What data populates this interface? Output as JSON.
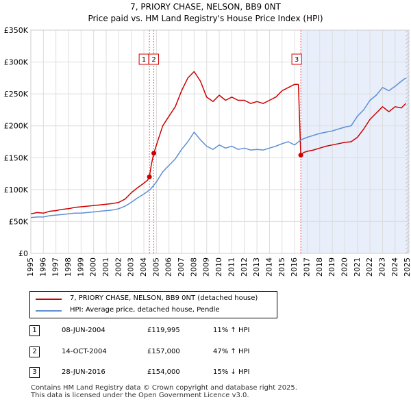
{
  "chart_data": {
    "type": "line",
    "title": "7, PRIORY CHASE, NELSON, BB9 0NT",
    "subtitle": "Price paid vs. HM Land Registry's House Price Index (HPI)",
    "xlabel": "",
    "ylabel": "",
    "xlim": [
      1995.0,
      2025.1
    ],
    "ylim": [
      0,
      350000
    ],
    "y_ticks": [
      0,
      50000,
      100000,
      150000,
      200000,
      250000,
      300000,
      350000
    ],
    "y_tick_labels": [
      "£0",
      "£50K",
      "£100K",
      "£150K",
      "£200K",
      "£250K",
      "£300K",
      "£350K"
    ],
    "x_ticks": [
      1995,
      1996,
      1997,
      1998,
      1999,
      2000,
      2001,
      2002,
      2003,
      2004,
      2005,
      2006,
      2007,
      2008,
      2009,
      2010,
      2011,
      2012,
      2013,
      2014,
      2015,
      2016,
      2017,
      2018,
      2019,
      2020,
      2021,
      2022,
      2023,
      2024,
      2025
    ],
    "x_tick_labels": [
      "1995",
      "1996",
      "1997",
      "1998",
      "1999",
      "2000",
      "2001",
      "2002",
      "2003",
      "2004",
      "2005",
      "2006",
      "2007",
      "2008",
      "2009",
      "2010",
      "2011",
      "2012",
      "2013",
      "2014",
      "2015",
      "2016",
      "2017",
      "2018",
      "2019",
      "2020",
      "2021",
      "2022",
      "2023",
      "2024",
      "2025"
    ],
    "grid": true,
    "shaded_region": {
      "from": 2016.49,
      "to": 2025.1,
      "color": "#e8eefa"
    },
    "hatch_region": {
      "from": 2024.85,
      "to": 2025.1
    },
    "colors": {
      "property": "#cc0000",
      "hpi": "#5b8fd6",
      "marker": "#cc0000",
      "vline": "#e06060"
    },
    "series": [
      {
        "name": "7, PRIORY CHASE, NELSON, BB9 0NT (detached house)",
        "color": "#cc0000",
        "x": [
          1995.0,
          1995.5,
          1996.0,
          1996.5,
          1997.0,
          1997.5,
          1998.0,
          1998.5,
          1999.0,
          1999.5,
          2000.0,
          2000.5,
          2001.0,
          2001.5,
          2002.0,
          2002.5,
          2003.0,
          2003.5,
          2004.0,
          2004.3,
          2004.44,
          2004.6,
          2004.79,
          2005.0,
          2005.5,
          2006.0,
          2006.5,
          2007.0,
          2007.5,
          2008.0,
          2008.5,
          2009.0,
          2009.5,
          2010.0,
          2010.5,
          2011.0,
          2011.5,
          2012.0,
          2012.5,
          2013.0,
          2013.5,
          2014.0,
          2014.5,
          2015.0,
          2015.5,
          2016.0,
          2016.3,
          2016.49,
          2016.7,
          2017.0,
          2017.5,
          2018.0,
          2018.5,
          2019.0,
          2019.5,
          2020.0,
          2020.5,
          2021.0,
          2021.5,
          2022.0,
          2022.5,
          2023.0,
          2023.5,
          2024.0,
          2024.5,
          2024.85
        ],
        "values": [
          62000,
          64000,
          63000,
          66000,
          67000,
          69000,
          70000,
          72000,
          73000,
          74000,
          75000,
          76000,
          77000,
          78000,
          80000,
          85000,
          95000,
          103000,
          110000,
          115000,
          119995,
          140000,
          157000,
          170000,
          200000,
          215000,
          230000,
          255000,
          275000,
          285000,
          270000,
          245000,
          238000,
          248000,
          240000,
          245000,
          240000,
          240000,
          235000,
          238000,
          235000,
          240000,
          245000,
          255000,
          260000,
          265000,
          265000,
          154000,
          158000,
          160000,
          162000,
          165000,
          168000,
          170000,
          172000,
          174000,
          175000,
          182000,
          195000,
          210000,
          220000,
          230000,
          222000,
          230000,
          228000,
          235000
        ]
      },
      {
        "name": "HPI: Average price, detached house, Pendle",
        "color": "#5b8fd6",
        "x": [
          1995.0,
          1995.5,
          1996.0,
          1996.5,
          1997.0,
          1997.5,
          1998.0,
          1998.5,
          1999.0,
          1999.5,
          2000.0,
          2000.5,
          2001.0,
          2001.5,
          2002.0,
          2002.5,
          2003.0,
          2003.5,
          2004.0,
          2004.5,
          2005.0,
          2005.5,
          2006.0,
          2006.5,
          2007.0,
          2007.5,
          2008.0,
          2008.5,
          2009.0,
          2009.5,
          2010.0,
          2010.5,
          2011.0,
          2011.5,
          2012.0,
          2012.5,
          2013.0,
          2013.5,
          2014.0,
          2014.5,
          2015.0,
          2015.5,
          2016.0,
          2016.5,
          2017.0,
          2017.5,
          2018.0,
          2018.5,
          2019.0,
          2019.5,
          2020.0,
          2020.5,
          2021.0,
          2021.5,
          2022.0,
          2022.5,
          2023.0,
          2023.5,
          2024.0,
          2024.5,
          2024.85
        ],
        "values": [
          56000,
          57000,
          57000,
          59000,
          60000,
          61000,
          62000,
          63000,
          63000,
          64000,
          65000,
          66000,
          67000,
          68000,
          70000,
          74000,
          80000,
          87000,
          93000,
          100000,
          112000,
          128000,
          138000,
          148000,
          163000,
          175000,
          190000,
          178000,
          168000,
          163000,
          170000,
          165000,
          168000,
          163000,
          165000,
          162000,
          163000,
          162000,
          165000,
          168000,
          172000,
          175000,
          170000,
          178000,
          182000,
          185000,
          188000,
          190000,
          192000,
          195000,
          198000,
          200000,
          215000,
          225000,
          240000,
          248000,
          260000,
          255000,
          262000,
          270000,
          275000
        ]
      }
    ],
    "sales": [
      {
        "label": "1",
        "x": 2004.44,
        "value": 119995
      },
      {
        "label": "2",
        "x": 2004.79,
        "value": 157000
      },
      {
        "label": "3",
        "x": 2016.49,
        "value": 154000
      }
    ]
  },
  "legend": {
    "property_label": "7, PRIORY CHASE, NELSON, BB9 0NT (detached house)",
    "hpi_label": "HPI: Average price, detached house, Pendle"
  },
  "transactions": [
    {
      "num": "1",
      "date": "08-JUN-2004",
      "price": "£119,995",
      "hpi": "11% ↑ HPI"
    },
    {
      "num": "2",
      "date": "14-OCT-2004",
      "price": "£157,000",
      "hpi": "47% ↑ HPI"
    },
    {
      "num": "3",
      "date": "28-JUN-2016",
      "price": "£154,000",
      "hpi": "15% ↓ HPI"
    }
  ],
  "footer": {
    "line1": "Contains HM Land Registry data © Crown copyright and database right 2025.",
    "line2": "This data is licensed under the Open Government Licence v3.0."
  }
}
